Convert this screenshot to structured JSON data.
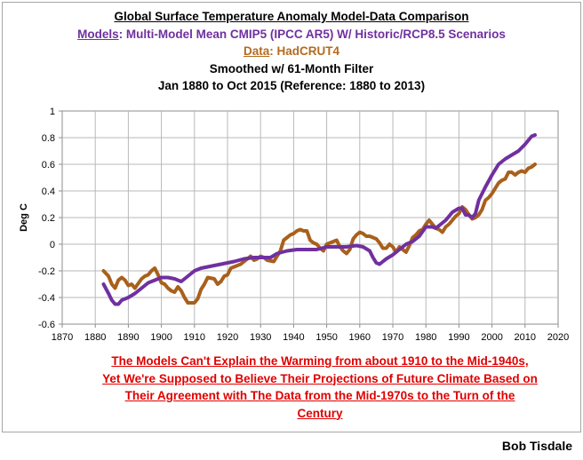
{
  "header": {
    "title": "Global Surface Temperature Anomaly Model-Data Comparison",
    "models_label": "Models",
    "models_text": ": Multi-Model Mean CMIP5 (IPCC AR5) W/ Historic/RCP8.5 Scenarios",
    "data_label": "Data",
    "data_text": ": HadCRUT4",
    "smoothing": "Smoothed w/ 61-Month Filter",
    "period": "Jan 1880 to Oct 2015 (Reference: 1880 to 2013)"
  },
  "annotation": {
    "line1": "The Models Can't Explain the Warming from about 1910 to the Mid-1940s,",
    "line2": "Yet We're Supposed to Believe Their Projections of Future Climate Based on",
    "line3": "Their Agreement with The Data from the Mid-1970s to the Turn of the",
    "line4": "Century"
  },
  "credit": "Bob Tisdale",
  "colors": {
    "models": "#7030a0",
    "data": "#a8601c",
    "annotation": "#e00000",
    "grid": "#b8b8b8"
  },
  "chart_data": {
    "type": "line",
    "xlim": [
      1870,
      2020
    ],
    "ylim": [
      -0.6,
      1.0
    ],
    "x_ticks": [
      "1870",
      "1880",
      "1890",
      "1900",
      "1910",
      "1920",
      "1930",
      "1940",
      "1950",
      "1960",
      "1970",
      "1980",
      "1990",
      "2000",
      "2010",
      "2020"
    ],
    "y_ticks": [
      "-0.6",
      "-0.4",
      "-0.2",
      "0",
      "0.2",
      "0.4",
      "0.6",
      "0.8",
      "1"
    ],
    "ylabel": "Deg C",
    "grid": true,
    "series": [
      {
        "name": "Models",
        "color_key": "models",
        "x": [
          1882.5,
          1884,
          1885,
          1886,
          1887,
          1888,
          1889,
          1890,
          1892,
          1894,
          1896,
          1898,
          1900,
          1902,
          1904,
          1906,
          1908,
          1910,
          1912,
          1914,
          1916,
          1918,
          1920,
          1922,
          1925,
          1928,
          1931,
          1933,
          1935,
          1938,
          1941,
          1944,
          1947,
          1950,
          1953,
          1956,
          1959,
          1961,
          1963,
          1964,
          1965,
          1966,
          1967,
          1968,
          1970,
          1972,
          1974,
          1976,
          1978,
          1980,
          1982,
          1983,
          1984,
          1986,
          1988,
          1990,
          1991,
          1992,
          1993,
          1994,
          1995,
          1996,
          1998,
          2000,
          2002,
          2004,
          2006,
          2008,
          2010,
          2012,
          2013
        ],
        "y": [
          -0.3,
          -0.37,
          -0.42,
          -0.45,
          -0.45,
          -0.42,
          -0.41,
          -0.4,
          -0.37,
          -0.33,
          -0.29,
          -0.27,
          -0.25,
          -0.25,
          -0.26,
          -0.28,
          -0.24,
          -0.2,
          -0.18,
          -0.17,
          -0.16,
          -0.15,
          -0.14,
          -0.13,
          -0.11,
          -0.1,
          -0.1,
          -0.1,
          -0.07,
          -0.05,
          -0.04,
          -0.04,
          -0.04,
          -0.02,
          -0.02,
          -0.02,
          -0.01,
          -0.02,
          -0.05,
          -0.1,
          -0.14,
          -0.15,
          -0.13,
          -0.11,
          -0.08,
          -0.04,
          0.0,
          0.02,
          0.06,
          0.13,
          0.13,
          0.12,
          0.14,
          0.18,
          0.24,
          0.27,
          0.27,
          0.22,
          0.22,
          0.2,
          0.23,
          0.33,
          0.43,
          0.52,
          0.6,
          0.64,
          0.67,
          0.7,
          0.75,
          0.81,
          0.82
        ]
      },
      {
        "name": "Data",
        "color_key": "data",
        "x": [
          1882.5,
          1884,
          1885,
          1886,
          1887,
          1888,
          1889,
          1890,
          1891,
          1892,
          1894,
          1895,
          1896,
          1897,
          1898,
          1899,
          1900,
          1901,
          1902,
          1903,
          1904,
          1905,
          1906,
          1907,
          1908,
          1909,
          1910,
          1911,
          1912,
          1913,
          1914,
          1916,
          1917,
          1918,
          1919,
          1920,
          1921,
          1922,
          1924,
          1926,
          1927,
          1928,
          1929,
          1930,
          1931,
          1932,
          1934,
          1936,
          1937,
          1938,
          1939,
          1940,
          1941,
          1942,
          1943,
          1944,
          1945,
          1946,
          1947,
          1948,
          1949,
          1950,
          1951,
          1952,
          1953,
          1954,
          1955,
          1956,
          1957,
          1958,
          1959,
          1960,
          1961,
          1962,
          1963,
          1964,
          1965,
          1966,
          1967,
          1968,
          1969,
          1970,
          1971,
          1972,
          1973,
          1974,
          1975,
          1976,
          1977,
          1978,
          1979,
          1980,
          1981,
          1982,
          1983,
          1984,
          1985,
          1986,
          1987,
          1988,
          1989,
          1990,
          1991,
          1992,
          1993,
          1994,
          1995,
          1996,
          1997,
          1998,
          1999,
          2000,
          2001,
          2002,
          2003,
          2004,
          2005,
          2006,
          2007,
          2008,
          2009,
          2010,
          2011,
          2012,
          2013
        ],
        "y": [
          -0.2,
          -0.24,
          -0.3,
          -0.33,
          -0.27,
          -0.25,
          -0.27,
          -0.31,
          -0.3,
          -0.33,
          -0.26,
          -0.24,
          -0.23,
          -0.2,
          -0.18,
          -0.23,
          -0.29,
          -0.3,
          -0.33,
          -0.35,
          -0.36,
          -0.32,
          -0.35,
          -0.4,
          -0.44,
          -0.44,
          -0.44,
          -0.41,
          -0.34,
          -0.3,
          -0.25,
          -0.26,
          -0.3,
          -0.28,
          -0.24,
          -0.23,
          -0.18,
          -0.17,
          -0.15,
          -0.11,
          -0.09,
          -0.12,
          -0.11,
          -0.09,
          -0.1,
          -0.12,
          -0.13,
          -0.05,
          0.03,
          0.05,
          0.07,
          0.08,
          0.1,
          0.11,
          0.1,
          0.1,
          0.03,
          0.01,
          0.0,
          -0.03,
          -0.05,
          0.0,
          0.01,
          0.02,
          0.03,
          -0.02,
          -0.05,
          -0.07,
          -0.04,
          0.04,
          0.07,
          0.09,
          0.08,
          0.06,
          0.06,
          0.05,
          0.04,
          0.01,
          -0.03,
          -0.03,
          0.0,
          -0.02,
          -0.06,
          -0.02,
          -0.04,
          -0.06,
          -0.01,
          0.05,
          0.07,
          0.1,
          0.11,
          0.15,
          0.18,
          0.15,
          0.12,
          0.11,
          0.09,
          0.13,
          0.15,
          0.18,
          0.21,
          0.23,
          0.28,
          0.26,
          0.22,
          0.19,
          0.2,
          0.22,
          0.26,
          0.33,
          0.35,
          0.38,
          0.42,
          0.46,
          0.48,
          0.49,
          0.54,
          0.54,
          0.52,
          0.54,
          0.55,
          0.54,
          0.57,
          0.58,
          0.6
        ]
      }
    ]
  }
}
